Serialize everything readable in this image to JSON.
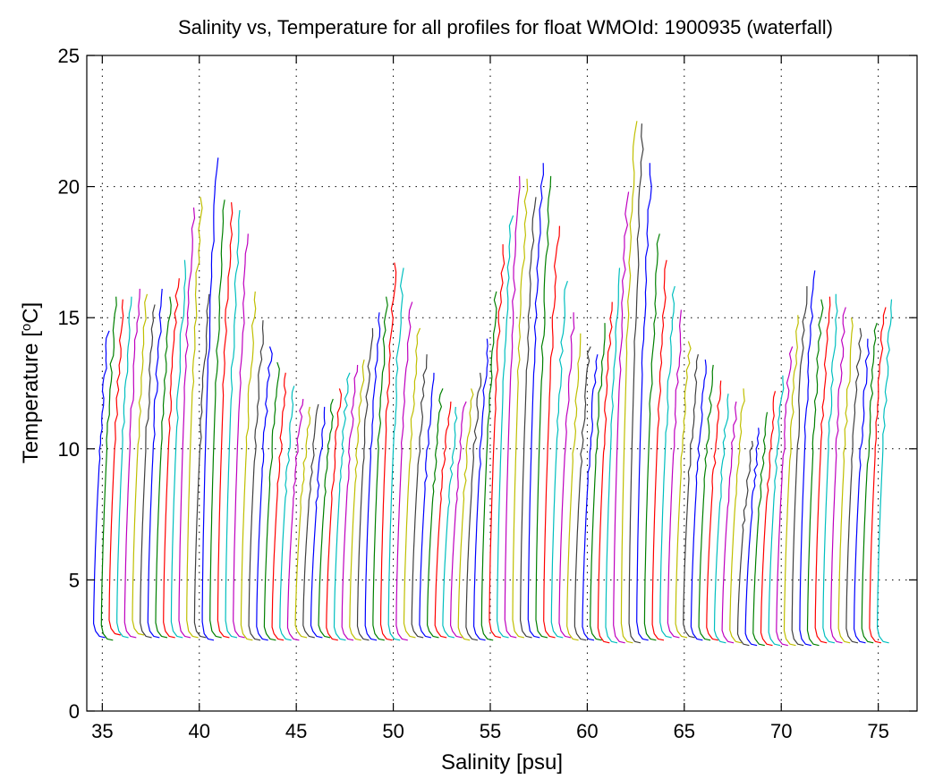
{
  "chart_data": {
    "type": "line",
    "title": "Salinity vs, Temperature for all profiles for float WMOId: 1900935 (waterfall)",
    "xlabel": "Salinity [psu]",
    "ylabel_main": "Temperature [",
    "ylabel_sup": "o",
    "ylabel_end": "C]",
    "xlim": [
      34.2,
      77.0
    ],
    "ylim": [
      0,
      25
    ],
    "xticks": [
      35,
      40,
      45,
      50,
      55,
      60,
      65,
      70,
      75
    ],
    "yticks": [
      0,
      5,
      10,
      15,
      20,
      25
    ],
    "grid": true,
    "colors": [
      "#0000ff",
      "#008000",
      "#ff0000",
      "#00bfbf",
      "#bf00bf",
      "#bfbf00",
      "#404040"
    ],
    "waterfall_offset_psu": 0.4,
    "profile_count": 102,
    "profile_start_x": 34.6,
    "profile_top_temperatures": [
      14.5,
      15.8,
      15.7,
      15.8,
      16.1,
      15.9,
      15.5,
      16.1,
      15.8,
      16.5,
      17.2,
      19.2,
      19.6,
      15.9,
      21.1,
      19.5,
      19.4,
      19.1,
      18.2,
      16.0,
      14.9,
      13.9,
      13.3,
      12.9,
      12.4,
      11.9,
      11.6,
      11.7,
      11.6,
      11.9,
      12.3,
      12.9,
      13.2,
      13.4,
      14.6,
      15.2,
      15.8,
      17.1,
      16.9,
      15.6,
      14.6,
      13.6,
      12.9,
      12.3,
      11.8,
      11.6,
      11.8,
      12.3,
      12.9,
      14.2,
      16.0,
      17.8,
      18.9,
      20.4,
      20.3,
      19.6,
      20.9,
      20.4,
      18.5,
      16.4,
      15.2,
      14.4,
      13.9,
      13.6,
      14.8,
      15.6,
      16.9,
      19.8,
      22.5,
      22.4,
      20.9,
      18.2,
      17.2,
      16.2,
      15.3,
      14.1,
      13.6,
      13.4,
      13.2,
      12.6,
      12.1,
      11.8,
      12.3,
      10.3,
      10.8,
      11.4,
      12.2,
      12.8,
      13.9,
      15.1,
      16.2,
      16.8,
      15.7,
      15.8,
      15.9,
      15.4,
      15.0,
      14.6,
      14.2,
      14.8,
      15.4,
      15.7
    ],
    "profile_bottom_temperatures": [
      2.8,
      2.7,
      2.9,
      2.8,
      2.8,
      2.9,
      2.8,
      2.8,
      2.8,
      2.8,
      2.8,
      2.8,
      2.8,
      2.8,
      2.7,
      2.8,
      2.8,
      2.8,
      2.8,
      2.7,
      2.7,
      2.7,
      2.7,
      2.7,
      2.7,
      2.7,
      2.8,
      2.8,
      2.8,
      2.8,
      2.7,
      2.7,
      2.7,
      2.7,
      2.7,
      2.7,
      2.7,
      2.7,
      2.7,
      2.7,
      2.8,
      2.8,
      2.8,
      2.8,
      2.8,
      2.8,
      2.8,
      2.7,
      2.7,
      2.7,
      2.7,
      2.8,
      2.8,
      2.8,
      2.8,
      2.8,
      2.8,
      2.8,
      2.8,
      2.8,
      2.8,
      2.7,
      2.7,
      2.7,
      2.7,
      2.6,
      2.6,
      2.6,
      2.6,
      2.6,
      2.7,
      2.7,
      2.7,
      2.8,
      2.8,
      2.8,
      2.8,
      2.7,
      2.7,
      2.7,
      2.6,
      2.6,
      2.6,
      2.5,
      2.5,
      2.5,
      2.5,
      2.5,
      2.5,
      2.5,
      2.5,
      2.5,
      2.5,
      2.6,
      2.6,
      2.6,
      2.6,
      2.6,
      2.6,
      2.6,
      2.6,
      2.6
    ]
  }
}
